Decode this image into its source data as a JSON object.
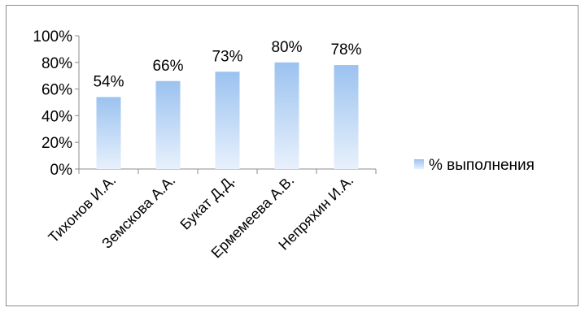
{
  "chart_data": {
    "type": "bar",
    "categories": [
      "Тихонов И.А.",
      "Земскова А.А.",
      "Букат Д.Д.",
      "Ермемеева А.В.",
      "Непряхин И.А."
    ],
    "series": [
      {
        "name": "% выполнения",
        "values": [
          54,
          66,
          73,
          80,
          78
        ],
        "color": "#9bc2f0",
        "color_light": "#e8f1fc"
      }
    ],
    "data_labels": [
      "54%",
      "66%",
      "73%",
      "80%",
      "78%"
    ],
    "ylim": [
      0,
      100
    ],
    "yticks": [
      0,
      20,
      40,
      60,
      80,
      100
    ],
    "ytick_labels": [
      "0%",
      "20%",
      "40%",
      "60%",
      "80%",
      "100%"
    ],
    "grid": false,
    "legend_position": "right",
    "title": "",
    "xlabel": "",
    "ylabel": ""
  }
}
